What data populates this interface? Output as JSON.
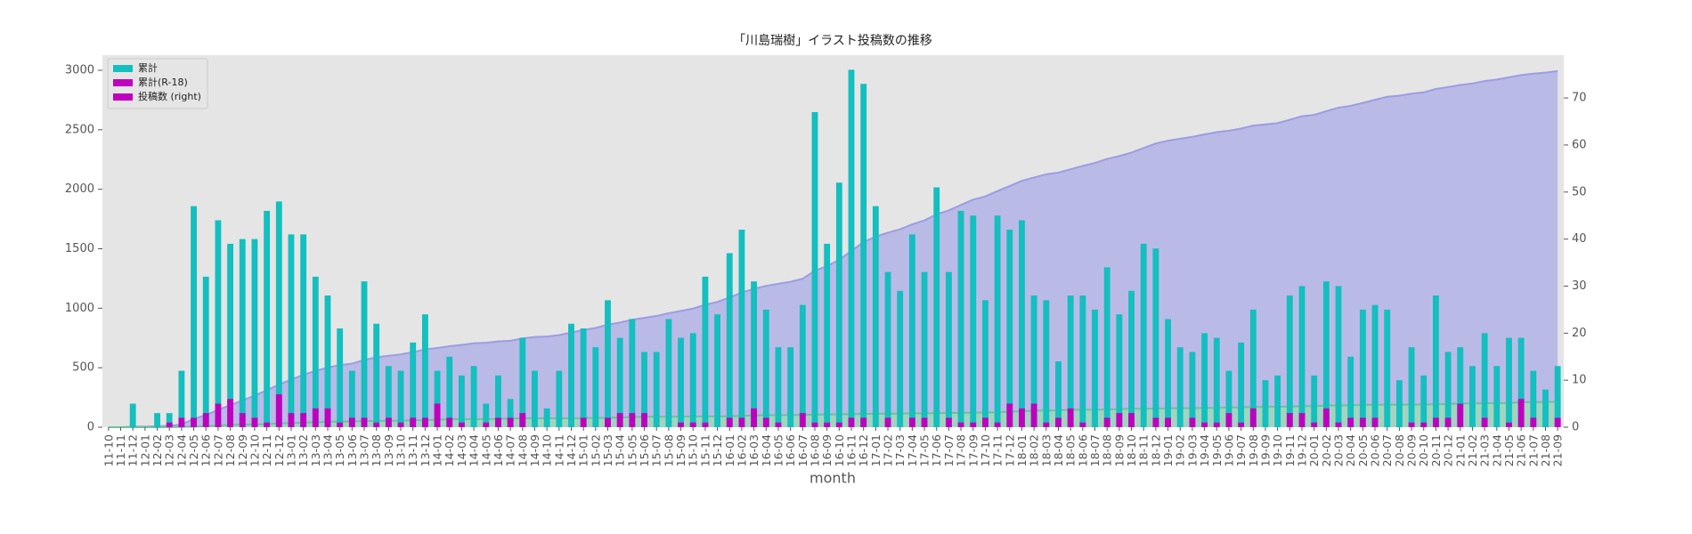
{
  "chart_data": {
    "type": "bar",
    "title": "「川島瑞樹」イラスト投稿数の推移",
    "x_label": "month",
    "categories": [
      "11-10",
      "11-11",
      "11-12",
      "12-01",
      "12-02",
      "12-03",
      "12-04",
      "12-05",
      "12-06",
      "12-07",
      "12-08",
      "12-09",
      "12-10",
      "12-11",
      "12-12",
      "13-01",
      "13-02",
      "13-03",
      "13-04",
      "13-05",
      "13-06",
      "13-07",
      "13-08",
      "13-09",
      "13-10",
      "13-11",
      "13-12",
      "14-01",
      "14-02",
      "14-03",
      "14-04",
      "14-05",
      "14-06",
      "14-07",
      "14-08",
      "14-09",
      "14-10",
      "14-11",
      "14-12",
      "15-01",
      "15-02",
      "15-03",
      "15-04",
      "15-05",
      "15-06",
      "15-07",
      "15-08",
      "15-09",
      "15-10",
      "15-11",
      "15-12",
      "16-01",
      "16-02",
      "16-03",
      "16-04",
      "16-05",
      "16-06",
      "16-07",
      "16-08",
      "16-09",
      "16-10",
      "16-11",
      "16-12",
      "17-01",
      "17-02",
      "17-03",
      "17-04",
      "17-05",
      "17-06",
      "17-07",
      "17-08",
      "17-09",
      "17-10",
      "17-11",
      "17-12",
      "18-01",
      "18-02",
      "18-03",
      "18-04",
      "18-05",
      "18-06",
      "18-07",
      "18-08",
      "18-09",
      "18-10",
      "18-11",
      "18-12",
      "19-01",
      "19-02",
      "19-03",
      "19-04",
      "19-05",
      "19-06",
      "19-07",
      "19-08",
      "19-09",
      "19-10",
      "19-11",
      "19-12",
      "20-01",
      "20-02",
      "20-03",
      "20-04",
      "20-05",
      "20-06",
      "20-07",
      "20-08",
      "20-09",
      "20-10",
      "20-11",
      "20-12",
      "21-01",
      "21-02",
      "21-03",
      "21-04",
      "21-05",
      "21-06",
      "21-07",
      "21-08",
      "21-09"
    ],
    "series": [
      {
        "kind": "area",
        "color": "#b3b3e8",
        "line_color": "#9c9ce4",
        "values": [
          0,
          0,
          5,
          5,
          8,
          11,
          23,
          70,
          102,
          146,
          185,
          225,
          265,
          311,
          359,
          400,
          441,
          473,
          501,
          522,
          534,
          565,
          587,
          600,
          612,
          630,
          654,
          666,
          681,
          692,
          705,
          710,
          721,
          727,
          746,
          758,
          762,
          774,
          796,
          817,
          834,
          861,
          880,
          903,
          919,
          935,
          958,
          977,
          997,
          1029,
          1053,
          1090,
          1132,
          1163,
          1188,
          1205,
          1222,
          1248,
          1315,
          1354,
          1406,
          1482,
          1555,
          1602,
          1635,
          1664,
          1705,
          1738,
          1789,
          1822,
          1868,
          1913,
          1940,
          1985,
          2027,
          2071,
          2099,
          2126,
          2140,
          2168,
          2196,
          2221,
          2255,
          2279,
          2308,
          2347,
          2385,
          2408,
          2425,
          2441,
          2461,
          2480,
          2492,
          2510,
          2535,
          2545,
          2556,
          2584,
          2614,
          2625,
          2656,
          2686,
          2701,
          2726,
          2752,
          2777,
          2787,
          2804,
          2815,
          2843,
          2859,
          2876,
          2889,
          2909,
          2922,
          2941,
          2960,
          2972,
          2980,
          2993
        ]
      },
      {
        "kind": "area",
        "color": "#9fd8b8",
        "line_color": "#6cc39a",
        "values": [
          0,
          0,
          0,
          0,
          0,
          1,
          3,
          5,
          8,
          13,
          19,
          22,
          24,
          25,
          32,
          35,
          38,
          42,
          46,
          47,
          49,
          51,
          52,
          54,
          55,
          57,
          59,
          64,
          66,
          67,
          67,
          68,
          70,
          72,
          75,
          75,
          75,
          75,
          75,
          77,
          77,
          79,
          82,
          85,
          88,
          88,
          88,
          89,
          90,
          91,
          91,
          93,
          95,
          99,
          101,
          102,
          102,
          105,
          106,
          107,
          108,
          110,
          112,
          112,
          114,
          114,
          116,
          118,
          118,
          120,
          121,
          122,
          124,
          125,
          130,
          134,
          139,
          140,
          142,
          146,
          147,
          147,
          149,
          152,
          155,
          155,
          157,
          159,
          159,
          161,
          162,
          163,
          166,
          167,
          171,
          171,
          171,
          174,
          177,
          178,
          182,
          183,
          185,
          187,
          189,
          189,
          189,
          190,
          191,
          193,
          195,
          200,
          200,
          202,
          202,
          203,
          209,
          211,
          211,
          213
        ]
      },
      {
        "kind": "bar",
        "axis": "y2",
        "color": "#13bfbf",
        "values": [
          0,
          0,
          5,
          0,
          3,
          3,
          12,
          47,
          32,
          44,
          39,
          40,
          40,
          46,
          48,
          41,
          41,
          32,
          28,
          21,
          12,
          31,
          22,
          13,
          12,
          18,
          24,
          12,
          15,
          11,
          13,
          5,
          11,
          6,
          19,
          12,
          4,
          12,
          22,
          21,
          17,
          27,
          19,
          23,
          16,
          16,
          23,
          19,
          20,
          32,
          24,
          37,
          42,
          31,
          25,
          17,
          17,
          26,
          67,
          39,
          52,
          76,
          73,
          47,
          33,
          29,
          41,
          33,
          51,
          33,
          46,
          45,
          27,
          45,
          42,
          44,
          28,
          27,
          14,
          28,
          28,
          25,
          34,
          24,
          29,
          39,
          38,
          23,
          17,
          16,
          20,
          19,
          12,
          18,
          25,
          10,
          11,
          28,
          30,
          11,
          31,
          30,
          15,
          25,
          26,
          25,
          10,
          17,
          11,
          28,
          16,
          17,
          13,
          20,
          13,
          19,
          19,
          12,
          8,
          13
        ]
      },
      {
        "kind": "bar",
        "axis": "y2",
        "color": "#bf00bf",
        "values": [
          0,
          0,
          0,
          0,
          0,
          1,
          2,
          2,
          3,
          5,
          6,
          3,
          2,
          1,
          7,
          3,
          3,
          4,
          4,
          1,
          2,
          2,
          1,
          2,
          1,
          2,
          2,
          5,
          2,
          1,
          0,
          1,
          2,
          2,
          3,
          0,
          0,
          0,
          0,
          2,
          0,
          2,
          3,
          3,
          3,
          0,
          0,
          1,
          1,
          1,
          0,
          2,
          2,
          4,
          2,
          1,
          0,
          3,
          1,
          1,
          1,
          2,
          2,
          0,
          2,
          0,
          2,
          2,
          0,
          2,
          1,
          1,
          2,
          1,
          5,
          4,
          5,
          1,
          2,
          4,
          1,
          0,
          2,
          3,
          3,
          0,
          2,
          2,
          0,
          2,
          1,
          1,
          3,
          1,
          4,
          0,
          0,
          3,
          3,
          1,
          4,
          1,
          2,
          2,
          2,
          0,
          0,
          1,
          1,
          2,
          2,
          5,
          0,
          2,
          0,
          1,
          6,
          2,
          0,
          2
        ]
      }
    ],
    "ylim": [
      0,
      3127
    ],
    "yticks": [
      0,
      500,
      1000,
      1500,
      2000,
      2500,
      3000
    ],
    "y2lim": [
      0,
      79.1
    ],
    "y2ticks": [
      0,
      10,
      20,
      30,
      40,
      50,
      60,
      70
    ],
    "grid": false,
    "legend": {
      "loc": "upper left",
      "entries": [
        {
          "label": "累計",
          "color": "#13bfbf"
        },
        {
          "label": "累計(R-18)",
          "color": "#bf00bf"
        },
        {
          "label": "投稿数 (right)",
          "color": "#bf00bf"
        }
      ]
    }
  }
}
